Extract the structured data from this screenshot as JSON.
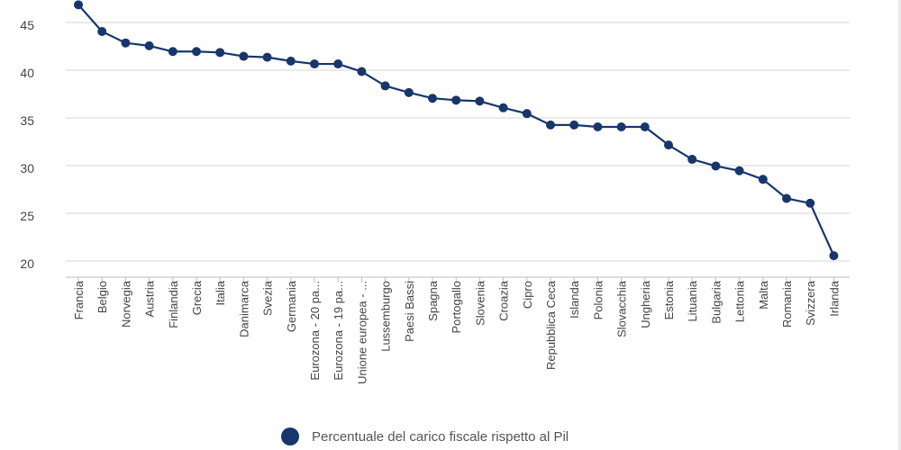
{
  "chart_data": {
    "type": "line",
    "categories": [
      "Francia",
      "Belgio",
      "Norvegia",
      "Austria",
      "Finlandia",
      "Grecia",
      "Italia",
      "Danimarca",
      "Svezia",
      "Germania",
      "Eurozona - 20 pa...",
      "Eurozona - 19 pa...",
      "Unione europea - ...",
      "Lussemburgo",
      "Paesi Bassi",
      "Spagna",
      "Portogallo",
      "Slovenia",
      "Croazia",
      "Cipro",
      "Repubblica Ceca",
      "Islanda",
      "Polonia",
      "Slovacchia",
      "Ungheria",
      "Estonia",
      "Lituania",
      "Bulgaria",
      "Lettonia",
      "Malta",
      "Romania",
      "Svizzera",
      "Irlanda"
    ],
    "series": [
      {
        "name": "Percentuale del carico fiscale rispetto al Pil",
        "color": "#17366b",
        "values": [
          47.8,
          45.0,
          43.8,
          43.5,
          42.9,
          42.9,
          42.8,
          42.4,
          42.3,
          41.9,
          41.6,
          41.6,
          40.8,
          39.3,
          38.6,
          38.0,
          37.8,
          37.7,
          37.0,
          36.4,
          35.2,
          35.2,
          35.0,
          35.0,
          35.0,
          33.1,
          31.6,
          30.9,
          30.4,
          29.5,
          27.5,
          27.0,
          21.5
        ]
      }
    ],
    "yticks": [
      20,
      25,
      30,
      35,
      40,
      45
    ],
    "ylim": [
      20,
      48
    ],
    "grid": true,
    "legend": "bottom-center"
  }
}
